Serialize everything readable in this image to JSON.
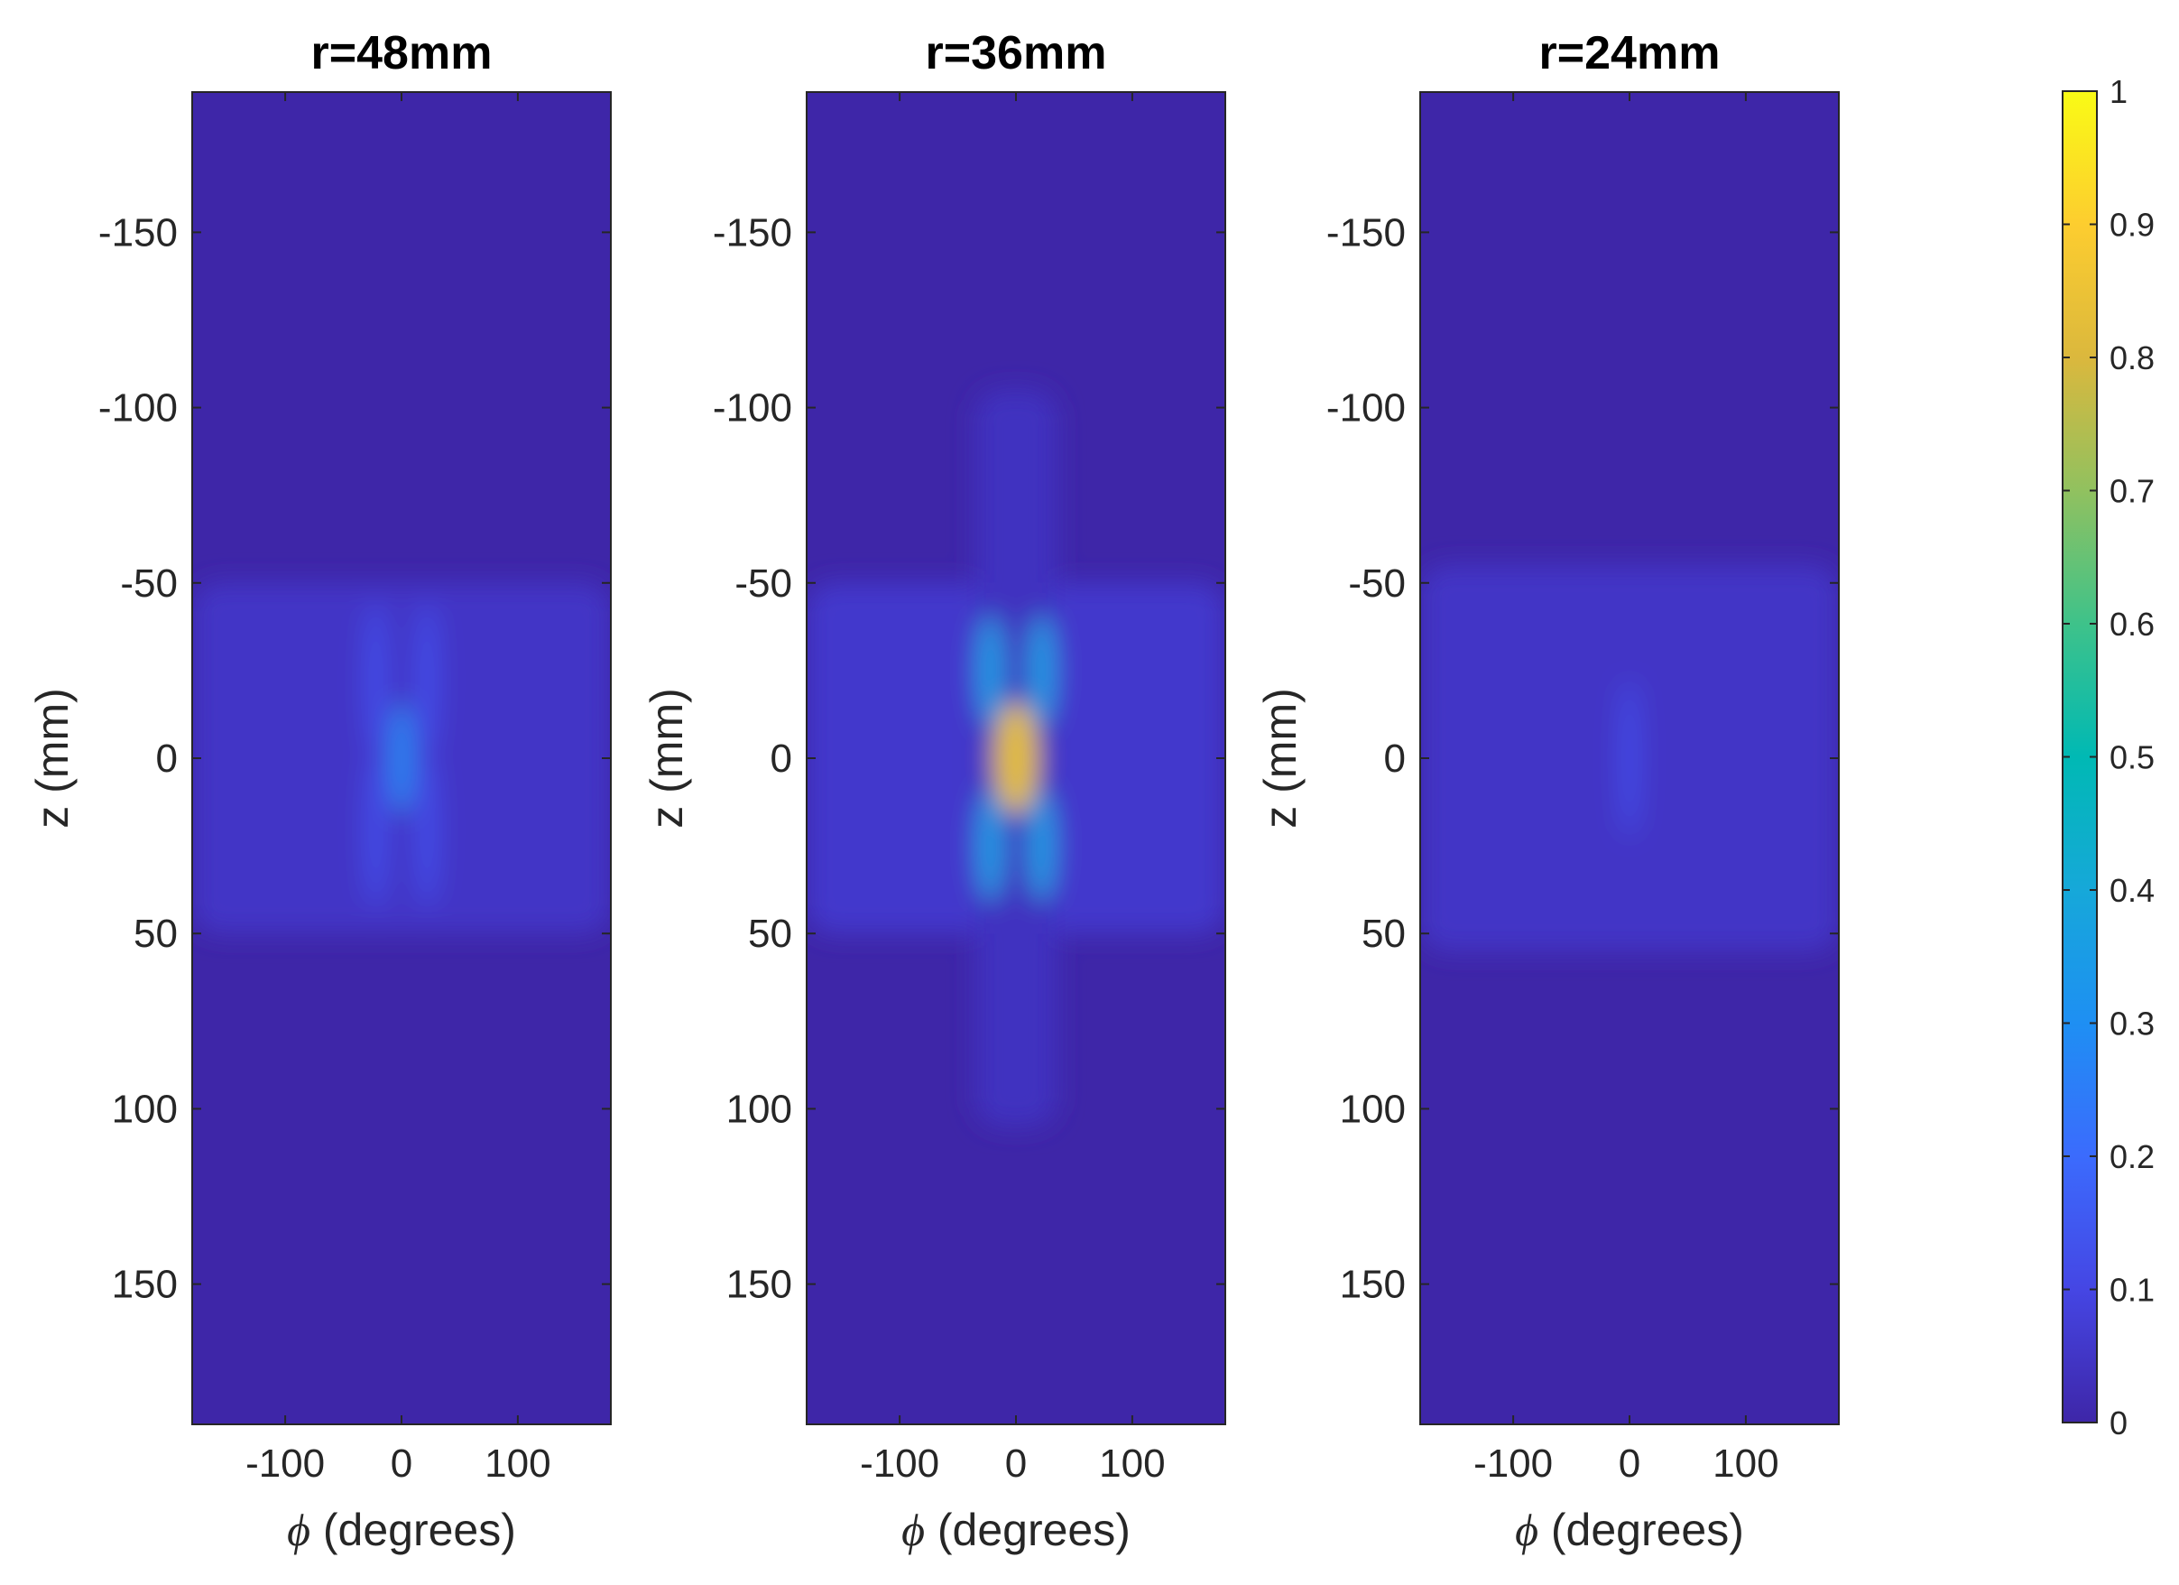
{
  "chart_data": [
    {
      "type": "heatmap",
      "title": "r=48mm",
      "xlabel_symbol": "ϕ",
      "xlabel_text": " (degrees)",
      "ylabel": "z (mm)",
      "xlim": [
        -180,
        180
      ],
      "ylim": [
        -190,
        190
      ],
      "y_reversed": true,
      "xticks": [
        -100,
        0,
        100
      ],
      "xtick_labels": [
        "-100",
        "0",
        "100"
      ],
      "yticks": [
        -150,
        -100,
        -50,
        0,
        50,
        100,
        150
      ],
      "ytick_labels": [
        "-150",
        "-100",
        "-50",
        "0",
        "50",
        "100",
        "150"
      ],
      "background_value": 0.0,
      "peak_value": 0.28,
      "features": [
        {
          "kind": "band",
          "phi_range": [
            -180,
            180
          ],
          "z_range": [
            -50,
            50
          ],
          "value": 0.05
        },
        {
          "kind": "spot",
          "phi": 0,
          "z": 0,
          "sigma_phi": 6,
          "sigma_z": 10,
          "value": 0.28
        },
        {
          "kind": "spot",
          "phi": -22,
          "z": -22,
          "sigma_phi": 6,
          "sigma_z": 14,
          "value": 0.12
        },
        {
          "kind": "spot",
          "phi": 22,
          "z": -22,
          "sigma_phi": 6,
          "sigma_z": 14,
          "value": 0.12
        },
        {
          "kind": "spot",
          "phi": -22,
          "z": 20,
          "sigma_phi": 6,
          "sigma_z": 14,
          "value": 0.12
        },
        {
          "kind": "spot",
          "phi": 22,
          "z": 20,
          "sigma_phi": 6,
          "sigma_z": 14,
          "value": 0.12
        }
      ]
    },
    {
      "type": "heatmap",
      "title": "r=36mm",
      "xlabel_symbol": "ϕ",
      "xlabel_text": " (degrees)",
      "ylabel": "z (mm)",
      "xlim": [
        -180,
        180
      ],
      "ylim": [
        -190,
        190
      ],
      "y_reversed": true,
      "xticks": [
        -100,
        0,
        100
      ],
      "xtick_labels": [
        "-100",
        "0",
        "100"
      ],
      "yticks": [
        -150,
        -100,
        -50,
        0,
        50,
        100,
        150
      ],
      "ytick_labels": [
        "-150",
        "-100",
        "-50",
        "0",
        "50",
        "100",
        "150"
      ],
      "background_value": 0.0,
      "peak_value": 0.82,
      "features": [
        {
          "kind": "band",
          "phi_range": [
            -180,
            180
          ],
          "z_range": [
            -50,
            50
          ],
          "value": 0.06
        },
        {
          "kind": "band",
          "phi_range": [
            -35,
            35
          ],
          "z_range": [
            -105,
            105
          ],
          "value": 0.04
        },
        {
          "kind": "spot",
          "phi": 0,
          "z": 0,
          "sigma_phi": 12,
          "sigma_z": 10,
          "value": 0.82
        },
        {
          "kind": "spot",
          "phi": -22,
          "z": -25,
          "sigma_phi": 7,
          "sigma_z": 10,
          "value": 0.35
        },
        {
          "kind": "spot",
          "phi": 22,
          "z": -25,
          "sigma_phi": 7,
          "sigma_z": 10,
          "value": 0.35
        },
        {
          "kind": "spot",
          "phi": -22,
          "z": 25,
          "sigma_phi": 7,
          "sigma_z": 10,
          "value": 0.35
        },
        {
          "kind": "spot",
          "phi": 22,
          "z": 25,
          "sigma_phi": 7,
          "sigma_z": 10,
          "value": 0.35
        }
      ]
    },
    {
      "type": "heatmap",
      "title": "r=24mm",
      "xlabel_symbol": "ϕ",
      "xlabel_text": " (degrees)",
      "ylabel": "z (mm)",
      "xlim": [
        -180,
        180
      ],
      "ylim": [
        -190,
        190
      ],
      "y_reversed": true,
      "xticks": [
        -100,
        0,
        100
      ],
      "xtick_labels": [
        "-100",
        "0",
        "100"
      ],
      "yticks": [
        -150,
        -100,
        -50,
        0,
        50,
        100,
        150
      ],
      "ytick_labels": [
        "-150",
        "-100",
        "-50",
        "0",
        "50",
        "100",
        "150"
      ],
      "background_value": 0.0,
      "peak_value": 0.12,
      "features": [
        {
          "kind": "band",
          "phi_range": [
            -180,
            180
          ],
          "z_range": [
            -55,
            55
          ],
          "value": 0.05
        },
        {
          "kind": "spot",
          "phi": 0,
          "z": 0,
          "sigma_phi": 5,
          "sigma_z": 14,
          "value": 0.12
        }
      ]
    }
  ],
  "colorbar": {
    "colormap": "parula",
    "range": [
      0,
      1
    ],
    "ticks": [
      0,
      0.1,
      0.2,
      0.3,
      0.4,
      0.5,
      0.6,
      0.7,
      0.8,
      0.9,
      1
    ],
    "tick_labels": [
      "0",
      "0.1",
      "0.2",
      "0.3",
      "0.4",
      "0.5",
      "0.6",
      "0.7",
      "0.8",
      "0.9",
      "1"
    ],
    "colors": [
      "#3e26a8",
      "#4546e4",
      "#3b6bfd",
      "#1e8ff3",
      "#16a8d9",
      "#00b9b4",
      "#3ec28a",
      "#91c15f",
      "#dbb83d",
      "#fdcd2f",
      "#f9fb15"
    ]
  }
}
